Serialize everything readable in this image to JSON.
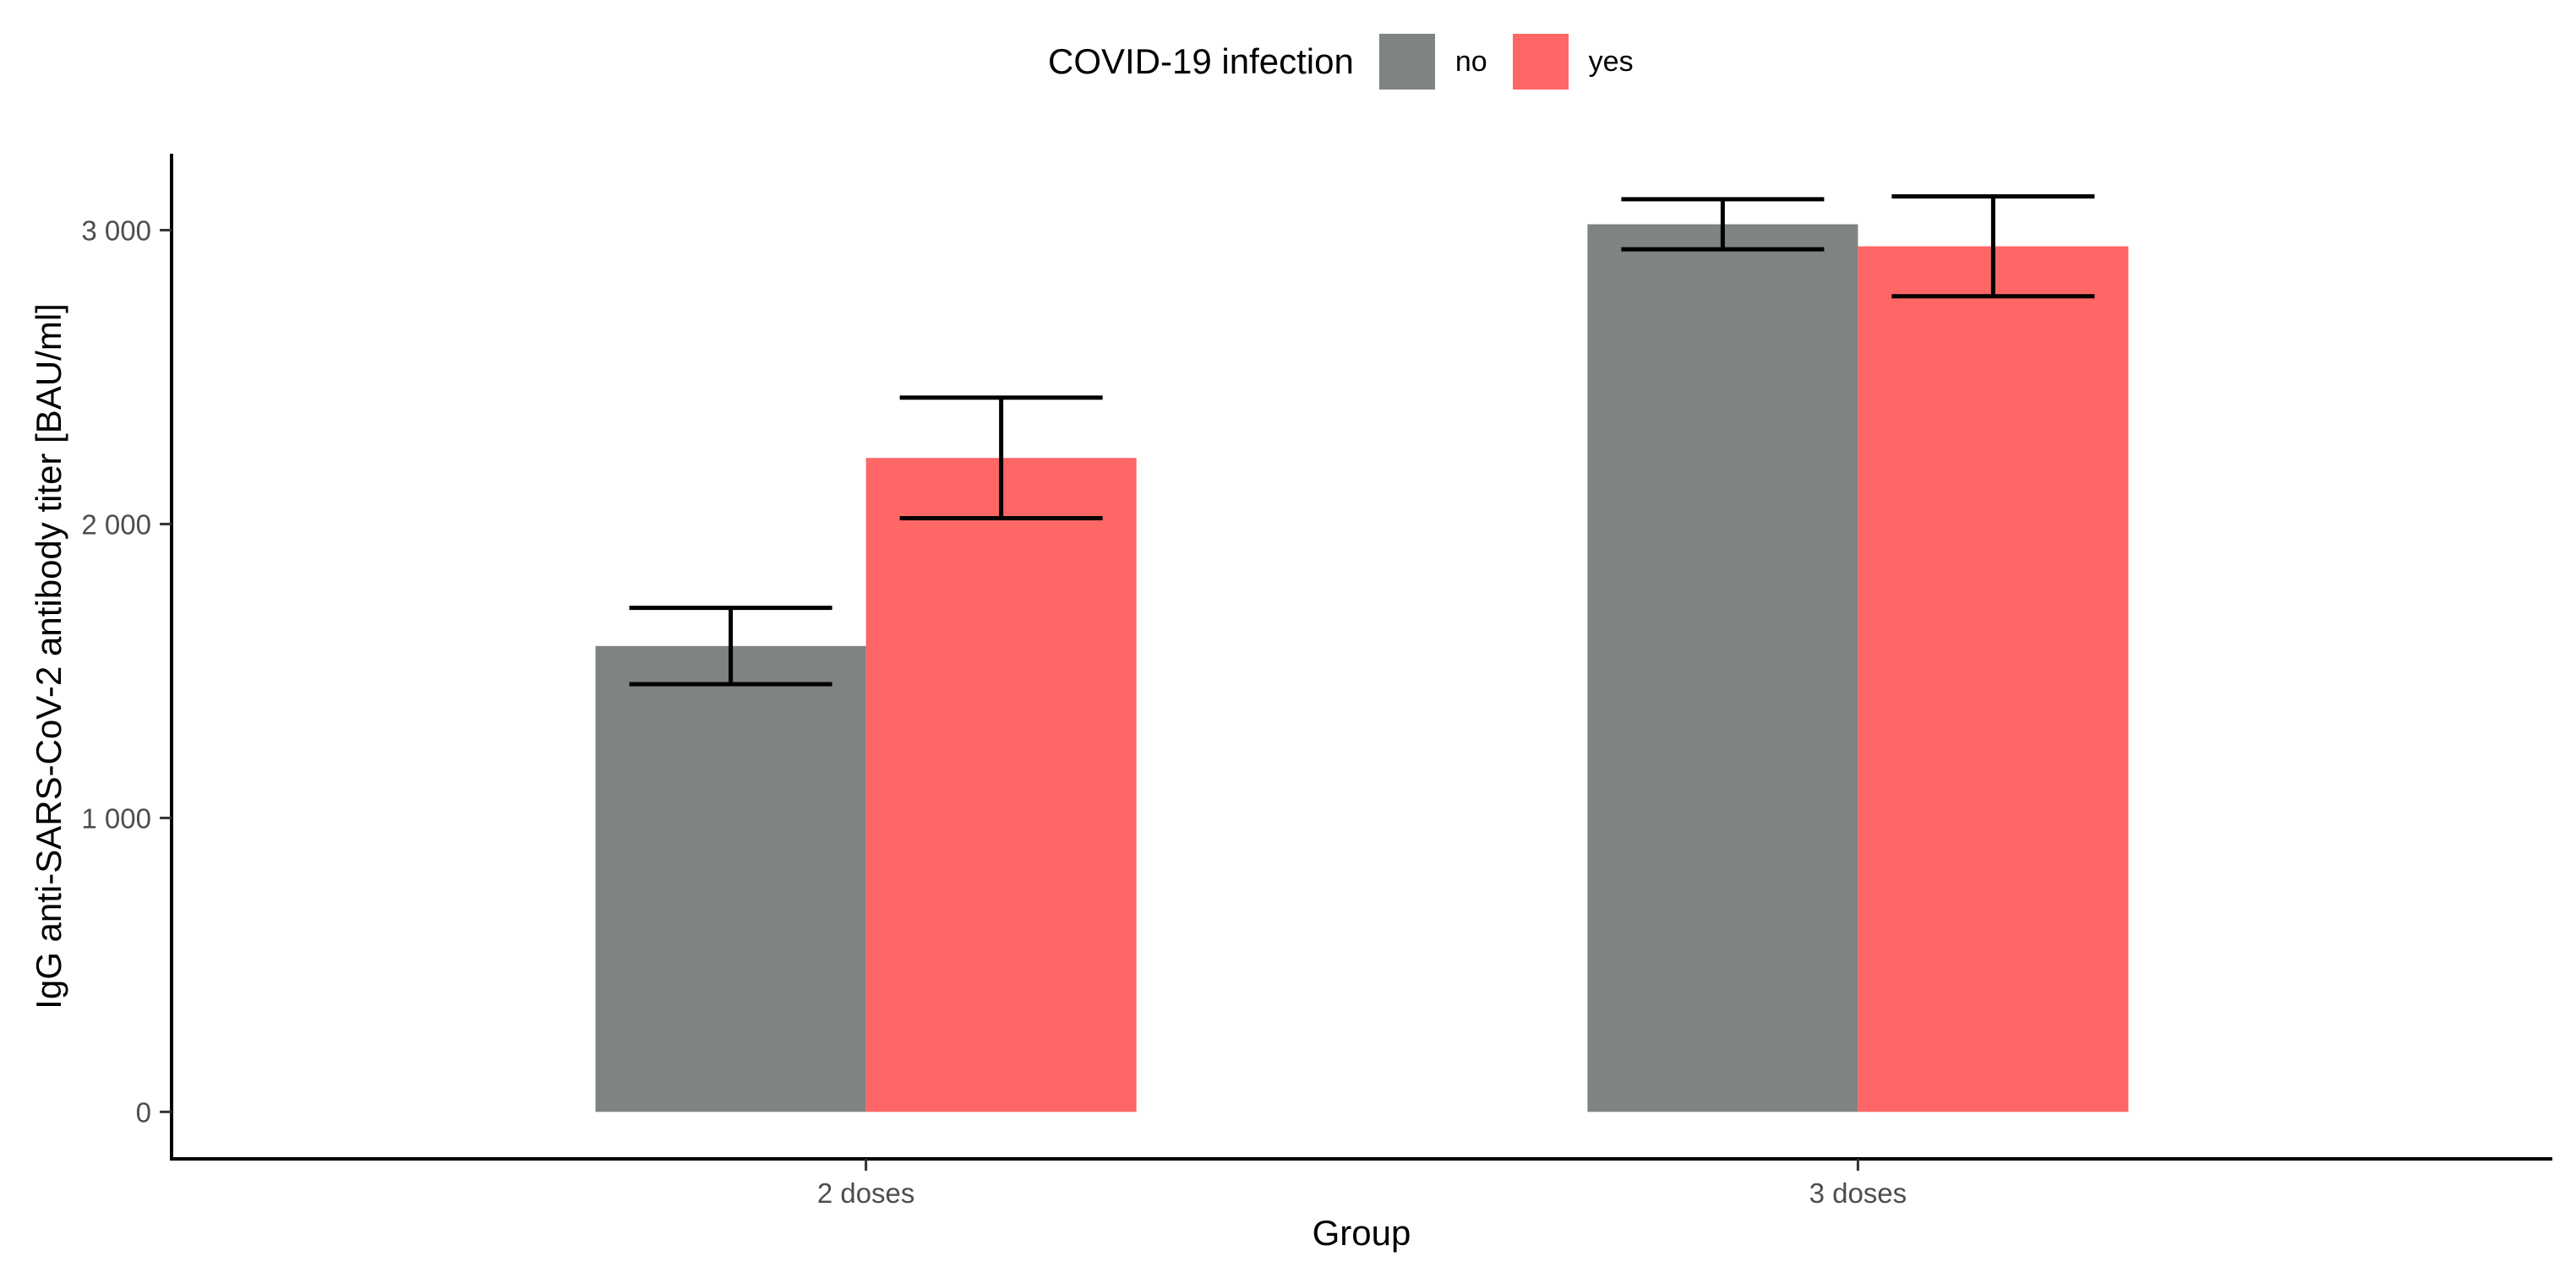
{
  "chart_data": {
    "type": "bar",
    "title": "",
    "xlabel": "Group",
    "ylabel": "IgG anti-SARS-CoV-2 antibody titer [BAU/ml]",
    "categories": [
      "2 doses",
      "3 doses"
    ],
    "ylim": [
      -160,
      3260
    ],
    "yticks": [
      0,
      1000,
      2000,
      3000
    ],
    "ytick_labels": [
      "0",
      "1 000",
      "2 000",
      "3 000"
    ],
    "legend": {
      "title": "COVID-19 infection",
      "position": "top",
      "entries": [
        {
          "name": "no",
          "color": "#7f8381"
        },
        {
          "name": "yes",
          "color": "#ff6666"
        }
      ]
    },
    "series": [
      {
        "name": "no",
        "color": "#7f8381",
        "values": [
          1585,
          3020
        ],
        "error_low": [
          1455,
          2935
        ],
        "error_high": [
          1715,
          3105
        ]
      },
      {
        "name": "yes",
        "color": "#ff6666",
        "values": [
          2225,
          2945
        ],
        "error_low": [
          2020,
          2775
        ],
        "error_high": [
          2430,
          3115
        ]
      }
    ]
  }
}
